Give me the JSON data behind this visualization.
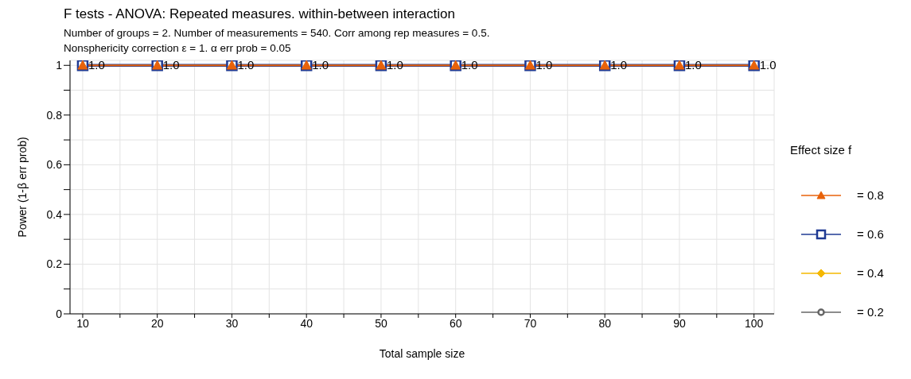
{
  "chart_data": {
    "type": "line",
    "title": "F tests - ANOVA: Repeated measures. within-between interaction",
    "subtitle": "Number of groups = 2. Number of measurements = 540. Corr among rep measures = 0.5.\nNonsphericity correction ε = 1. α err prob = 0.05",
    "xlabel": "Total sample size",
    "ylabel": "Power (1-β err prob)",
    "legend_title": "Effect size f",
    "x": [
      10,
      20,
      30,
      40,
      50,
      60,
      70,
      80,
      90,
      100
    ],
    "series": [
      {
        "name": "= 0.8",
        "color": "#e8620a",
        "marker": "triangle",
        "values": [
          1,
          1,
          1,
          1,
          1,
          1,
          1,
          1,
          1,
          1
        ],
        "value_labels": [
          "1.0",
          "1.0",
          "1.0",
          "1.0",
          "1.0",
          "1.0",
          "1.0",
          "1.0",
          "1.0",
          "1.0"
        ]
      },
      {
        "name": "= 0.6",
        "color": "#1f3a93",
        "marker": "square",
        "values": [
          1,
          1,
          1,
          1,
          1,
          1,
          1,
          1,
          1,
          1
        ]
      },
      {
        "name": "= 0.4",
        "color": "#f5b800",
        "marker": "diamond",
        "values": [
          null,
          null,
          null,
          null,
          null,
          null,
          null,
          null,
          null,
          null
        ]
      },
      {
        "name": "= 0.2",
        "color": "#666666",
        "marker": "circle",
        "values": [
          null,
          null,
          null,
          null,
          null,
          null,
          null,
          null,
          null,
          null
        ]
      }
    ],
    "xlim": [
      8.3,
      102.7
    ],
    "ylim": [
      0,
      1.02
    ],
    "xticks": [
      10,
      {
        "value": 15,
        "label": null
      },
      20,
      {
        "value": 25,
        "label": null
      },
      30,
      {
        "value": 35,
        "label": null
      },
      40,
      {
        "value": 45,
        "label": null
      },
      50,
      {
        "value": 55,
        "label": null
      },
      60,
      {
        "value": 65,
        "label": null
      },
      70,
      {
        "value": 75,
        "label": null
      },
      80,
      {
        "value": 85,
        "label": null
      },
      90,
      {
        "value": 95,
        "label": null
      },
      100
    ],
    "yticks": [
      0,
      {
        "value": 0.1,
        "label": null
      },
      0.2,
      {
        "value": 0.3,
        "label": null
      },
      0.4,
      {
        "value": 0.5,
        "label": null
      },
      0.6,
      {
        "value": 0.7,
        "label": null
      },
      0.8,
      {
        "value": 0.9,
        "label": null
      },
      1
    ],
    "grid": true,
    "legend": "right",
    "line_style": "solid"
  }
}
